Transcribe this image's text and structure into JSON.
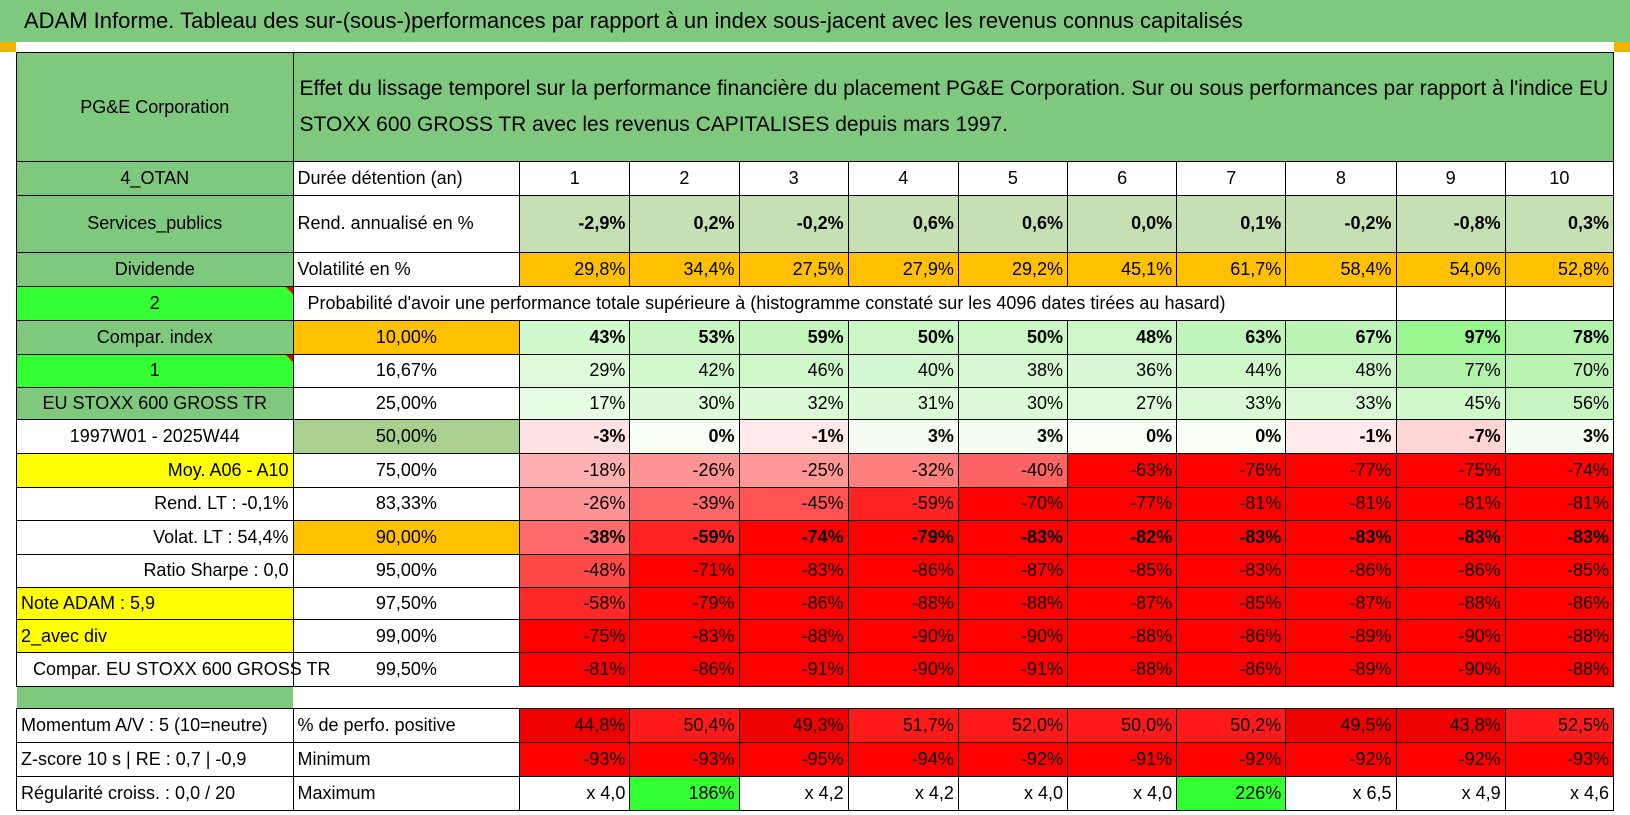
{
  "title": "ADAM Informe. Tableau des sur-(sous-)performances par rapport à un index sous-jacent avec les revenus connus capitalisés",
  "header": {
    "company": "PG&E Corporation",
    "description": "Effet du lissage temporel sur la performance financière du placement PG&E Corporation. Sur ou sous performances par rapport à l'indice EU STOXX 600 GROSS TR avec les revenus CAPITALISES depuis mars 1997."
  },
  "left_labels": {
    "otan": "4_OTAN",
    "sector": "Services_publics",
    "dividend": "Dividende",
    "val_2": "2",
    "compar_index": "Compar. index",
    "val_1": "1",
    "index_name": "EU STOXX 600 GROSS TR",
    "period": "1997W01 - 2025W44",
    "moy": "Moy. A06 - A10",
    "rend_lt": "Rend. LT :    -0,1%",
    "volat_lt": "Volat. LT :    54,4%",
    "sharpe": "Ratio Sharpe :     0,0",
    "note": "Note ADAM : 5,9",
    "avec_div": "2_avec div",
    "compar_eu": "Compar. EU STOXX 600 GROSS TR",
    "momentum": "Momentum A/V : 5 (10=neutre)",
    "zscore": "Z-score 10 s | RE : 0,7 | -0,9",
    "regularite": "Régularité croiss. : 0,0 / 20"
  },
  "row_labels": {
    "duree": "Durée détention (an)",
    "rend": "Rend. annualisé en %",
    "volat": "Volatilité en %",
    "proba": "Probabilité d'avoir une performance totale supérieure à (histogramme constaté sur les 4096 dates tirées au hasard)",
    "perf_pos": "% de perfo. positive",
    "minimum": "Minimum",
    "maximum": "Maximum"
  },
  "years": [
    "1",
    "2",
    "3",
    "4",
    "5",
    "6",
    "7",
    "8",
    "9",
    "10"
  ],
  "rend": [
    "-2,9%",
    "0,2%",
    "-0,2%",
    "0,6%",
    "0,6%",
    "0,0%",
    "0,1%",
    "-0,2%",
    "-0,8%",
    "0,3%"
  ],
  "volat": [
    "29,8%",
    "34,4%",
    "27,5%",
    "27,9%",
    "29,2%",
    "45,1%",
    "61,7%",
    "58,4%",
    "54,0%",
    "52,8%"
  ],
  "thresholds": [
    "10,00%",
    "16,67%",
    "25,00%",
    "50,00%",
    "75,00%",
    "83,33%",
    "90,00%",
    "95,00%",
    "97,50%",
    "99,00%",
    "99,50%"
  ],
  "proba_rows": [
    [
      "43%",
      "53%",
      "59%",
      "50%",
      "50%",
      "48%",
      "63%",
      "67%",
      "97%",
      "78%"
    ],
    [
      "29%",
      "42%",
      "46%",
      "40%",
      "38%",
      "36%",
      "44%",
      "48%",
      "77%",
      "70%"
    ],
    [
      "17%",
      "30%",
      "32%",
      "31%",
      "30%",
      "27%",
      "33%",
      "33%",
      "45%",
      "56%"
    ],
    [
      "-3%",
      "0%",
      "-1%",
      "3%",
      "3%",
      "0%",
      "0%",
      "-1%",
      "-7%",
      "3%"
    ],
    [
      "-18%",
      "-26%",
      "-25%",
      "-32%",
      "-40%",
      "-63%",
      "-76%",
      "-77%",
      "-75%",
      "-74%"
    ],
    [
      "-26%",
      "-39%",
      "-45%",
      "-59%",
      "-70%",
      "-77%",
      "-81%",
      "-81%",
      "-81%",
      "-81%"
    ],
    [
      "-38%",
      "-59%",
      "-74%",
      "-79%",
      "-83%",
      "-82%",
      "-83%",
      "-83%",
      "-83%",
      "-83%"
    ],
    [
      "-48%",
      "-71%",
      "-83%",
      "-86%",
      "-87%",
      "-85%",
      "-83%",
      "-86%",
      "-86%",
      "-85%"
    ],
    [
      "-58%",
      "-79%",
      "-86%",
      "-88%",
      "-88%",
      "-87%",
      "-85%",
      "-87%",
      "-88%",
      "-86%"
    ],
    [
      "-75%",
      "-83%",
      "-88%",
      "-90%",
      "-90%",
      "-88%",
      "-86%",
      "-89%",
      "-90%",
      "-88%"
    ],
    [
      "-81%",
      "-86%",
      "-91%",
      "-90%",
      "-91%",
      "-88%",
      "-86%",
      "-89%",
      "-90%",
      "-88%"
    ]
  ],
  "perf_pos": [
    "44,8%",
    "50,4%",
    "49,3%",
    "51,7%",
    "52,0%",
    "50,0%",
    "50,2%",
    "49,5%",
    "43,8%",
    "52,5%"
  ],
  "minimum": [
    "-93%",
    "-93%",
    "-95%",
    "-94%",
    "-92%",
    "-91%",
    "-92%",
    "-92%",
    "-92%",
    "-93%"
  ],
  "maximum": [
    "x 4,0",
    "186%",
    "x 4,2",
    "x 4,2",
    "x 4,0",
    "x 4,0",
    "226%",
    "x 6,5",
    "x 4,9",
    "x 4,6"
  ],
  "colors": {
    "title_green": "#7fc97f",
    "pale_green": "#d6ecd0",
    "bright_green": "#33ff33",
    "orange": "#ffc000",
    "yellow": "#ffff00",
    "strong_red": "#ff0000",
    "label_red": "#e00000"
  }
}
